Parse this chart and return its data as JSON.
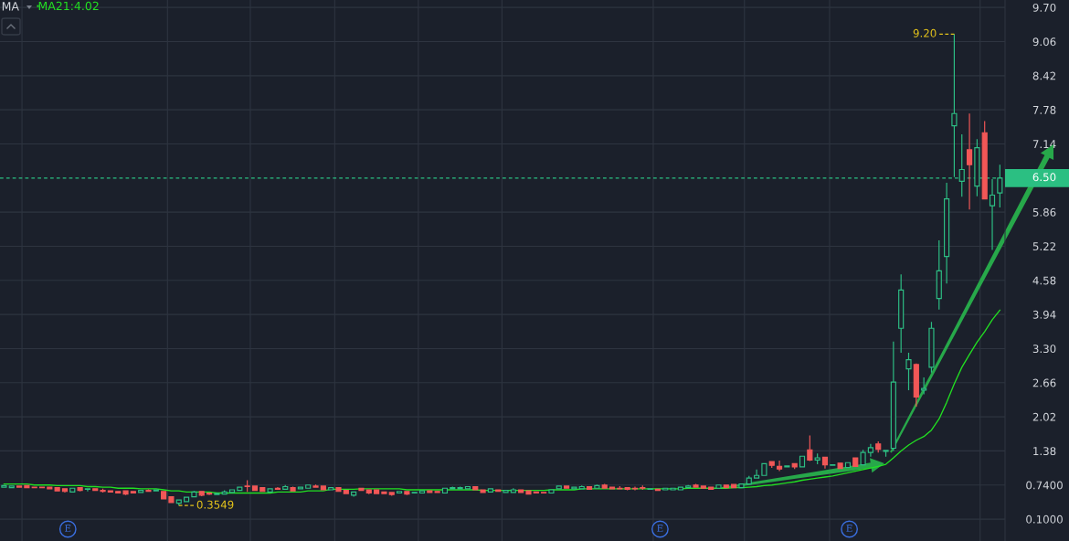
{
  "chart_data": {
    "type": "candlestick",
    "categories": [
      null,
      null,
      null,
      null,
      null,
      null,
      null,
      null,
      null,
      null,
      null,
      null,
      null,
      null,
      null,
      null,
      null,
      null,
      null,
      null,
      null,
      null,
      null,
      null,
      null,
      null,
      null,
      null,
      null,
      null,
      null,
      null,
      null,
      null,
      null,
      null,
      null,
      null,
      null,
      null,
      null,
      null,
      null,
      null,
      null,
      null,
      null,
      null,
      null,
      null,
      null,
      null,
      null,
      null,
      null,
      null,
      null,
      null,
      null,
      null,
      null,
      null,
      null,
      null,
      null,
      null,
      null,
      null,
      null,
      null,
      null,
      null,
      null,
      null,
      null,
      null,
      null,
      null,
      null,
      null,
      null,
      null,
      null,
      null,
      null,
      null,
      null,
      null,
      null,
      null,
      null,
      null,
      null,
      null,
      null,
      null,
      null,
      null,
      null,
      null,
      null,
      null,
      null,
      null,
      null,
      null,
      null,
      null,
      null,
      null,
      null,
      null,
      null,
      null,
      null,
      null,
      null,
      null,
      null,
      null,
      null,
      null,
      null,
      null,
      null,
      null,
      null,
      null,
      null,
      null,
      null,
      null
    ],
    "ohlc": [
      [
        0.7,
        0.74,
        0.69,
        0.73
      ],
      [
        0.69,
        0.73,
        0.68,
        0.72
      ],
      [
        0.72,
        0.73,
        0.69,
        0.7
      ],
      [
        0.73,
        0.74,
        0.69,
        0.69
      ],
      [
        0.7,
        0.71,
        0.69,
        0.69
      ],
      [
        0.7,
        0.71,
        0.68,
        0.69
      ],
      [
        0.7,
        0.71,
        0.67,
        0.67
      ],
      [
        0.69,
        0.69,
        0.62,
        0.63
      ],
      [
        0.67,
        0.68,
        0.6,
        0.62
      ],
      [
        0.61,
        0.69,
        0.61,
        0.68
      ],
      [
        0.69,
        0.7,
        0.62,
        0.64
      ],
      [
        0.66,
        0.68,
        0.62,
        0.67
      ],
      [
        0.67,
        0.68,
        0.63,
        0.64
      ],
      [
        0.64,
        0.67,
        0.6,
        0.62
      ],
      [
        0.63,
        0.64,
        0.6,
        0.61
      ],
      [
        0.62,
        0.63,
        0.58,
        0.59
      ],
      [
        0.63,
        0.64,
        0.55,
        0.57
      ],
      [
        0.62,
        0.63,
        0.58,
        0.59
      ],
      [
        0.6,
        0.65,
        0.6,
        0.64
      ],
      [
        0.64,
        0.66,
        0.61,
        0.62
      ],
      [
        0.63,
        0.66,
        0.62,
        0.65
      ],
      [
        0.62,
        0.63,
        0.47,
        0.48
      ],
      [
        0.52,
        0.53,
        0.4,
        0.41
      ],
      [
        0.4,
        0.47,
        0.3549,
        0.46
      ],
      [
        0.43,
        0.52,
        0.42,
        0.51
      ],
      [
        0.52,
        0.63,
        0.51,
        0.61
      ],
      [
        0.62,
        0.63,
        0.53,
        0.55
      ],
      [
        0.59,
        0.6,
        0.55,
        0.57
      ],
      [
        0.56,
        0.6,
        0.55,
        0.58
      ],
      [
        0.57,
        0.64,
        0.56,
        0.61
      ],
      [
        0.6,
        0.66,
        0.59,
        0.65
      ],
      [
        0.64,
        0.71,
        0.63,
        0.7
      ],
      [
        0.72,
        0.83,
        0.61,
        0.71
      ],
      [
        0.72,
        0.73,
        0.63,
        0.64
      ],
      [
        0.69,
        0.7,
        0.61,
        0.62
      ],
      [
        0.61,
        0.68,
        0.6,
        0.67
      ],
      [
        0.68,
        0.7,
        0.65,
        0.66
      ],
      [
        0.66,
        0.74,
        0.65,
        0.71
      ],
      [
        0.69,
        0.71,
        0.62,
        0.63
      ],
      [
        0.67,
        0.71,
        0.66,
        0.7
      ],
      [
        0.68,
        0.75,
        0.67,
        0.74
      ],
      [
        0.72,
        0.75,
        0.69,
        0.7
      ],
      [
        0.72,
        0.73,
        0.64,
        0.65
      ],
      [
        0.65,
        0.7,
        0.64,
        0.69
      ],
      [
        0.69,
        0.7,
        0.61,
        0.62
      ],
      [
        0.64,
        0.65,
        0.57,
        0.58
      ],
      [
        0.55,
        0.62,
        0.52,
        0.61
      ],
      [
        0.68,
        0.69,
        0.63,
        0.64
      ],
      [
        0.65,
        0.66,
        0.57,
        0.59
      ],
      [
        0.65,
        0.66,
        0.57,
        0.58
      ],
      [
        0.61,
        0.62,
        0.57,
        0.58
      ],
      [
        0.6,
        0.61,
        0.54,
        0.56
      ],
      [
        0.59,
        0.63,
        0.58,
        0.62
      ],
      [
        0.62,
        0.63,
        0.55,
        0.57
      ],
      [
        0.59,
        0.61,
        0.58,
        0.6
      ],
      [
        0.59,
        0.64,
        0.58,
        0.63
      ],
      [
        0.63,
        0.64,
        0.59,
        0.6
      ],
      [
        0.62,
        0.63,
        0.59,
        0.6
      ],
      [
        0.59,
        0.69,
        0.58,
        0.68
      ],
      [
        0.67,
        0.71,
        0.66,
        0.69
      ],
      [
        0.67,
        0.71,
        0.66,
        0.69
      ],
      [
        0.67,
        0.72,
        0.66,
        0.71
      ],
      [
        0.71,
        0.72,
        0.64,
        0.65
      ],
      [
        0.65,
        0.66,
        0.59,
        0.6
      ],
      [
        0.61,
        0.68,
        0.6,
        0.67
      ],
      [
        0.65,
        0.66,
        0.61,
        0.62
      ],
      [
        0.6,
        0.65,
        0.59,
        0.64
      ],
      [
        0.6,
        0.68,
        0.59,
        0.65
      ],
      [
        0.65,
        0.66,
        0.59,
        0.6
      ],
      [
        0.63,
        0.64,
        0.56,
        0.57
      ],
      [
        0.61,
        0.62,
        0.58,
        0.59
      ],
      [
        0.6,
        0.61,
        0.58,
        0.59
      ],
      [
        0.59,
        0.66,
        0.58,
        0.65
      ],
      [
        0.67,
        0.73,
        0.66,
        0.72
      ],
      [
        0.72,
        0.73,
        0.67,
        0.68
      ],
      [
        0.67,
        0.71,
        0.66,
        0.7
      ],
      [
        0.67,
        0.73,
        0.66,
        0.71
      ],
      [
        0.71,
        0.72,
        0.65,
        0.66
      ],
      [
        0.68,
        0.75,
        0.67,
        0.73
      ],
      [
        0.74,
        0.76,
        0.67,
        0.68
      ],
      [
        0.7,
        0.71,
        0.66,
        0.67
      ],
      [
        0.68,
        0.72,
        0.66,
        0.67
      ],
      [
        0.69,
        0.7,
        0.64,
        0.66
      ],
      [
        0.68,
        0.71,
        0.64,
        0.67
      ],
      [
        0.69,
        0.73,
        0.65,
        0.68
      ],
      [
        0.66,
        0.68,
        0.65,
        0.67
      ],
      [
        0.66,
        0.67,
        0.63,
        0.64
      ],
      [
        0.65,
        0.69,
        0.64,
        0.68
      ],
      [
        0.65,
        0.69,
        0.64,
        0.68
      ],
      [
        0.65,
        0.71,
        0.64,
        0.7
      ],
      [
        0.69,
        0.74,
        0.68,
        0.72
      ],
      [
        0.74,
        0.76,
        0.69,
        0.7
      ],
      [
        0.72,
        0.73,
        0.67,
        0.68
      ],
      [
        0.7,
        0.71,
        0.65,
        0.66
      ],
      [
        0.68,
        0.75,
        0.67,
        0.74
      ],
      [
        0.74,
        0.75,
        0.68,
        0.69
      ],
      [
        0.75,
        0.76,
        0.68,
        0.69
      ],
      [
        0.69,
        0.77,
        0.68,
        0.76
      ],
      [
        0.76,
        0.91,
        0.75,
        0.87
      ],
      [
        0.87,
        1.03,
        0.86,
        0.92
      ],
      [
        0.92,
        1.15,
        0.91,
        1.14
      ],
      [
        1.18,
        1.19,
        1.06,
        1.11
      ],
      [
        1.09,
        1.2,
        1.0,
        1.04
      ],
      [
        1.08,
        1.11,
        1.07,
        1.1
      ],
      [
        1.14,
        1.15,
        1.04,
        1.08
      ],
      [
        1.08,
        1.29,
        1.07,
        1.28
      ],
      [
        1.4,
        1.67,
        1.19,
        1.21
      ],
      [
        1.21,
        1.33,
        1.13,
        1.25
      ],
      [
        1.26,
        1.27,
        1.05,
        1.12
      ],
      [
        1.11,
        1.13,
        1.1,
        1.12
      ],
      [
        1.15,
        1.16,
        1.04,
        1.05
      ],
      [
        1.07,
        1.17,
        1.06,
        1.16
      ],
      [
        1.25,
        1.26,
        1.08,
        1.09
      ],
      [
        1.12,
        1.4,
        1.11,
        1.35
      ],
      [
        1.35,
        1.51,
        1.27,
        1.44
      ],
      [
        1.51,
        1.56,
        1.35,
        1.41
      ],
      [
        1.37,
        1.4,
        1.27,
        1.39
      ],
      [
        1.43,
        3.43,
        1.38,
        2.67
      ],
      [
        3.68,
        4.69,
        3.22,
        4.4
      ],
      [
        2.92,
        3.22,
        2.52,
        3.09
      ],
      [
        3.0,
        3.02,
        2.21,
        2.39
      ],
      [
        2.52,
        2.76,
        2.44,
        2.55
      ],
      [
        2.95,
        3.8,
        2.85,
        3.68
      ],
      [
        4.24,
        5.33,
        4.03,
        4.76
      ],
      [
        5.03,
        6.41,
        4.52,
        6.11
      ],
      [
        7.48,
        9.2,
        6.52,
        7.71
      ],
      [
        6.44,
        7.32,
        6.15,
        6.66
      ],
      [
        7.03,
        7.71,
        5.91,
        6.75
      ],
      [
        6.35,
        7.23,
        6.16,
        7.07
      ],
      [
        7.35,
        7.57,
        6.1,
        6.11
      ],
      [
        5.98,
        6.48,
        5.15,
        6.18
      ],
      [
        6.22,
        6.75,
        5.95,
        6.5
      ]
    ],
    "colors": [
      "#2dbe84",
      "#2dbe84",
      "#f25757",
      "#f25757",
      "#f25757",
      "#f25757",
      "#f25757",
      "#f25757",
      "#f25757",
      "#2dbe84",
      "#f25757",
      "#2dbe84",
      "#f25757",
      "#f25757",
      "#f25757",
      "#f25757",
      "#f25757",
      "#f25757",
      "#2dbe84",
      "#f25757",
      "#2dbe84",
      "#f25757",
      "#f25757",
      "#2dbe84",
      "#2dbe84",
      "#2dbe84",
      "#f25757",
      "#f25757",
      "#2dbe84",
      "#2dbe84",
      "#2dbe84",
      "#2dbe84",
      "#f25757",
      "#f25757",
      "#f25757",
      "#2dbe84",
      "#f25757",
      "#2dbe84",
      "#f25757",
      "#2dbe84",
      "#2dbe84",
      "#f25757",
      "#f25757",
      "#2dbe84",
      "#f25757",
      "#f25757",
      "#2dbe84",
      "#f25757",
      "#f25757",
      "#f25757",
      "#f25757",
      "#f25757",
      "#2dbe84",
      "#f25757",
      "#2dbe84",
      "#2dbe84",
      "#f25757",
      "#f25757",
      "#2dbe84",
      "#2dbe84",
      "#2dbe84",
      "#2dbe84",
      "#f25757",
      "#f25757",
      "#2dbe84",
      "#f25757",
      "#2dbe84",
      "#2dbe84",
      "#f25757",
      "#f25757",
      "#f25757",
      "#f25757",
      "#2dbe84",
      "#2dbe84",
      "#f25757",
      "#2dbe84",
      "#2dbe84",
      "#f25757",
      "#2dbe84",
      "#f25757",
      "#f25757",
      "#f25757",
      "#f25757",
      "#f25757",
      "#f25757",
      "#2dbe84",
      "#f25757",
      "#2dbe84",
      "#2dbe84",
      "#2dbe84",
      "#2dbe84",
      "#f25757",
      "#f25757",
      "#f25757",
      "#2dbe84",
      "#f25757",
      "#f25757",
      "#2dbe84",
      "#2dbe84",
      "#2dbe84",
      "#2dbe84",
      "#f25757",
      "#f25757",
      "#2dbe84",
      "#f25757",
      "#2dbe84",
      "#f25757",
      "#2dbe84",
      "#f25757",
      "#2dbe84",
      "#f25757",
      "#2dbe84",
      "#f25757",
      "#2dbe84",
      "#2dbe84",
      "#f25757",
      "#2dbe84",
      "#2dbe84",
      "#2dbe84",
      "#2dbe84",
      "#f25757",
      "#2dbe84",
      "#2dbe84",
      "#2dbe84",
      "#2dbe84",
      "#2dbe84",
      "#2dbe84",
      "#f25757",
      "#2dbe84",
      "#f25757",
      "#2dbe84",
      "#2dbe84"
    ],
    "series": [
      {
        "type": "line",
        "name": "MA21:4.02",
        "color": "#22e022",
        "values": [
          0.76,
          0.76,
          0.76,
          0.76,
          0.74,
          0.74,
          0.74,
          0.73,
          0.73,
          0.73,
          0.73,
          0.71,
          0.71,
          0.7,
          0.7,
          0.68,
          0.68,
          0.68,
          0.67,
          0.67,
          0.67,
          0.65,
          0.63,
          0.63,
          0.61,
          0.61,
          0.61,
          0.61,
          0.59,
          0.59,
          0.59,
          0.59,
          0.59,
          0.59,
          0.59,
          0.59,
          0.61,
          0.61,
          0.61,
          0.61,
          0.63,
          0.63,
          0.63,
          0.66,
          0.66,
          0.66,
          0.66,
          0.67,
          0.67,
          0.67,
          0.67,
          0.67,
          0.67,
          0.65,
          0.65,
          0.65,
          0.65,
          0.65,
          0.65,
          0.65,
          0.65,
          0.65,
          0.65,
          0.64,
          0.64,
          0.64,
          0.64,
          0.64,
          0.64,
          0.64,
          0.64,
          0.64,
          0.65,
          0.65,
          0.65,
          0.65,
          0.67,
          0.67,
          0.67,
          0.67,
          0.67,
          0.67,
          0.67,
          0.67,
          0.67,
          0.67,
          0.67,
          0.67,
          0.67,
          0.67,
          0.68,
          0.68,
          0.68,
          0.68,
          0.68,
          0.68,
          0.69,
          0.69,
          0.7,
          0.71,
          0.73,
          0.74,
          0.76,
          0.78,
          0.8,
          0.83,
          0.85,
          0.87,
          0.89,
          0.91,
          0.94,
          0.97,
          1.0,
          1.03,
          1.06,
          1.09,
          1.13,
          1.25,
          1.38,
          1.49,
          1.58,
          1.65,
          1.77,
          1.98,
          2.29,
          2.64,
          2.95,
          3.19,
          3.42,
          3.62,
          3.84,
          4.02
        ]
      }
    ],
    "ylim": [
      -0.31,
      9.84
    ],
    "yticks": [
      {
        "value": 0.1,
        "label": "0.1000"
      },
      {
        "value": 0.74,
        "label": "0.7400"
      },
      1.38,
      2.02,
      2.66,
      {
        "value": 3.3,
        "label": "3.30"
      },
      3.94,
      4.58,
      5.22,
      5.86,
      7.14,
      7.78,
      8.42,
      9.06,
      {
        "value": 9.7,
        "label": "9.70"
      }
    ],
    "grid": true,
    "legend": "top left",
    "tick_labels": "y",
    "ref_lines": [
      {
        "axis": "y",
        "value": 6.5,
        "label": "6.50",
        "color": "#2bbf82",
        "line_style": "dashed"
      }
    ],
    "annotations": [
      "MA",
      "E",
      "E",
      "E",
      "9.20",
      "0.3549"
    ]
  }
}
